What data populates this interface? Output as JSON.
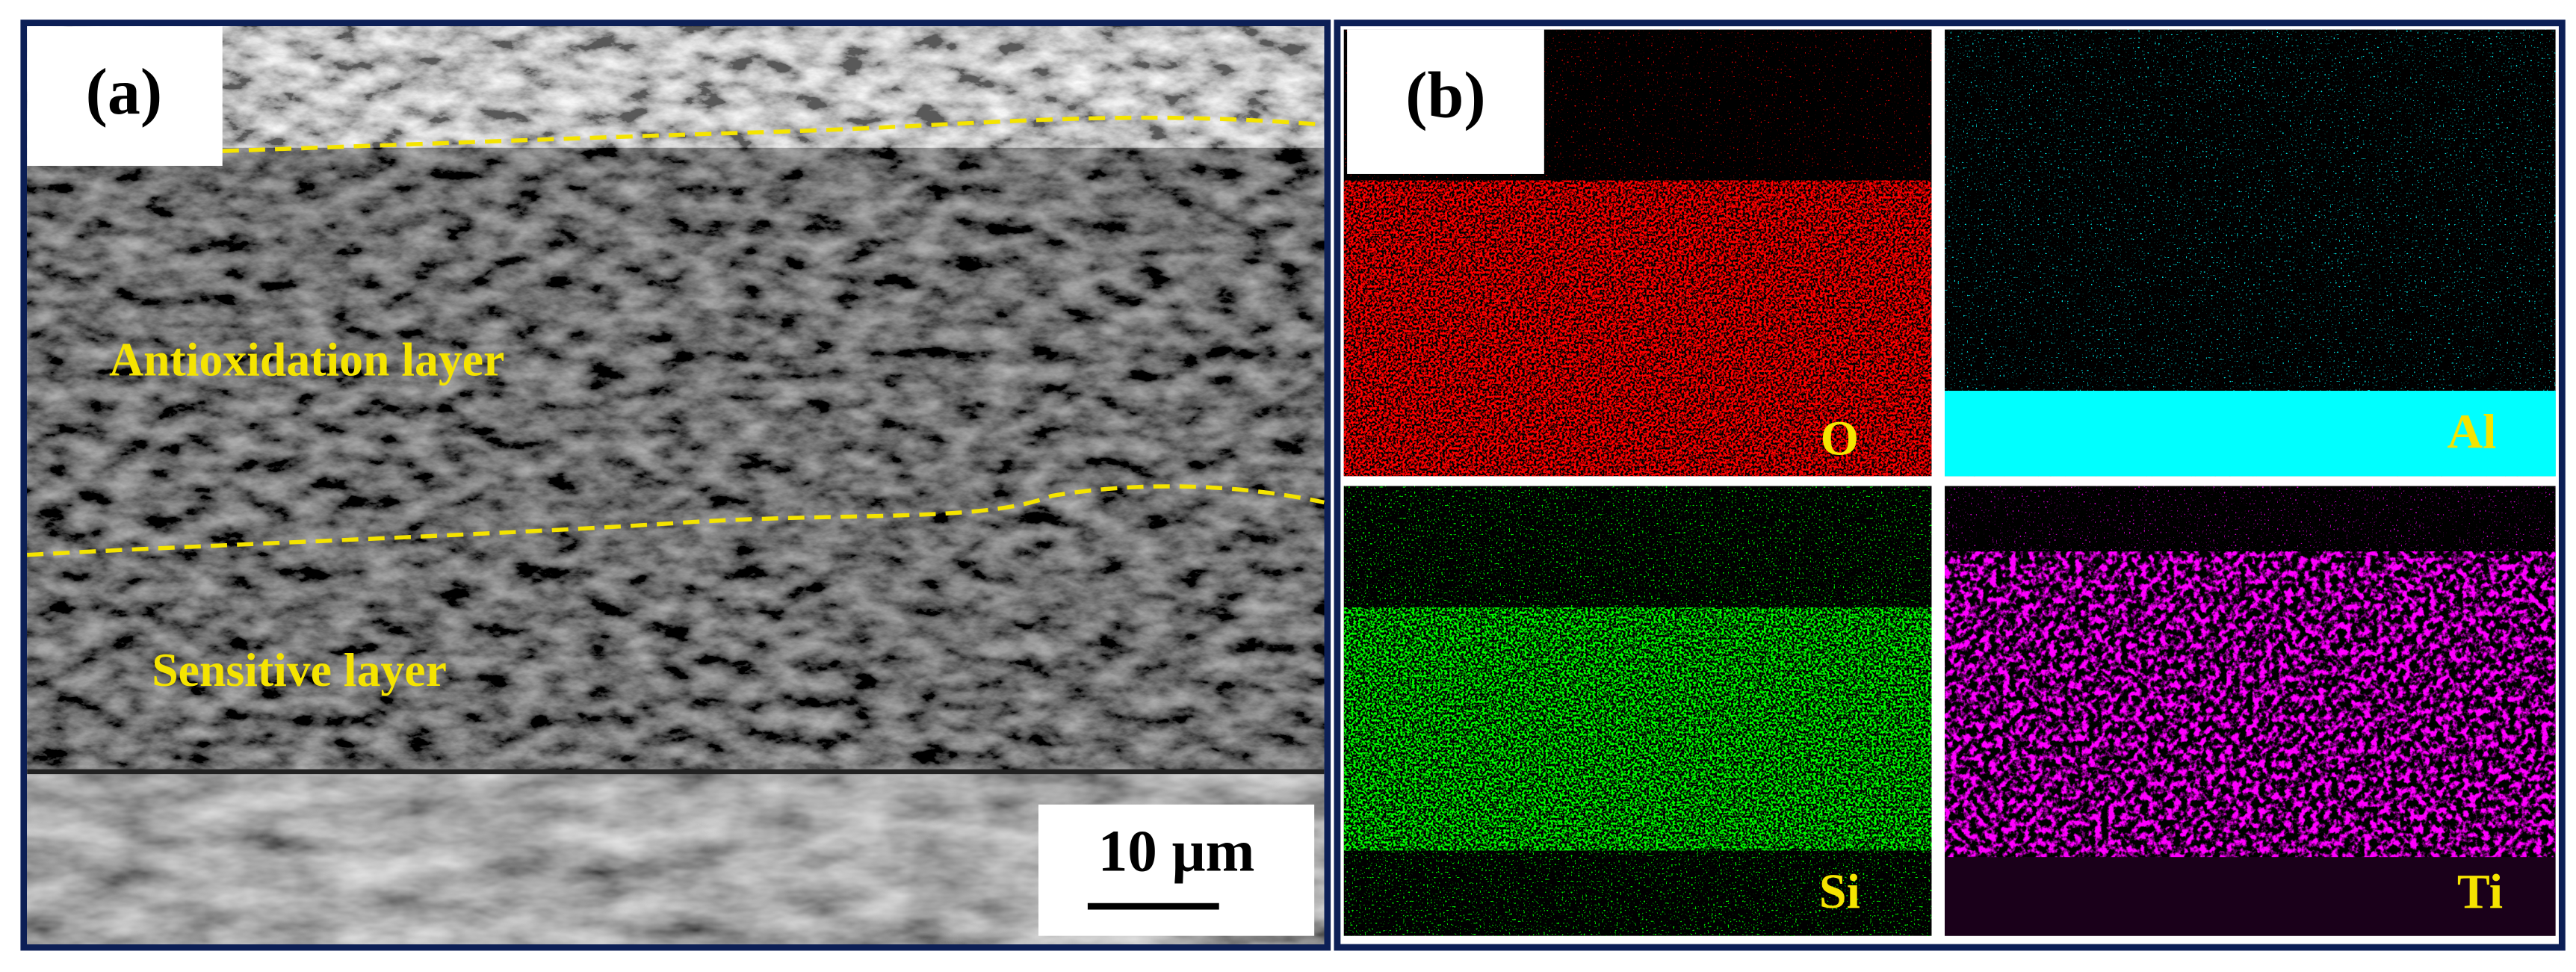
{
  "panel_a": {
    "label": "(a)",
    "annotations": [
      "Antioxidation layer",
      "Sensitive layer"
    ],
    "scale_bar": "10 μm"
  },
  "panel_b": {
    "label": "(b)",
    "maps": [
      "O",
      "Al",
      "Si",
      "Ti"
    ]
  }
}
